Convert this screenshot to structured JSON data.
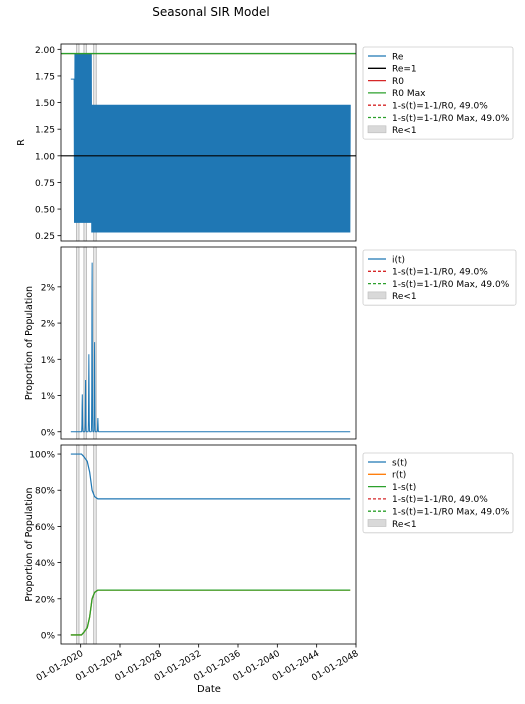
{
  "title": "Seasonal SIR Model",
  "xlabel": "Date",
  "x_ticks": [
    "01-01-2020",
    "01-01-2024",
    "01-01-2028",
    "01-01-2032",
    "01-01-2036",
    "01-01-2040",
    "01-01-2044",
    "01-01-2048"
  ],
  "colors": {
    "blue": "#1f77b4",
    "black": "#000000",
    "red": "#d62728",
    "green": "#2ca02c",
    "orange": "#ff7f0e",
    "band": "#d9d9d9"
  },
  "chart_data": [
    {
      "type": "line",
      "ylabel": "R",
      "x_range": [
        "2018-01-01",
        "2048-01-01"
      ],
      "data_x_range": [
        "2019-01-01",
        "2047-06-01"
      ],
      "ylim": [
        0.2,
        2.05
      ],
      "y_ticks": [
        "0.25",
        "0.50",
        "0.75",
        "1.00",
        "1.25",
        "1.50",
        "1.75",
        "2.00"
      ],
      "y_tick_values": [
        0.25,
        0.5,
        0.75,
        1.0,
        1.25,
        1.5,
        1.75,
        2.0
      ],
      "series": [
        {
          "name": "Re",
          "seasonal_max_start": 1.96,
          "seasonal_min_start": 0.37,
          "seasonal_max_end": 1.48,
          "seasonal_min_end": 0.28
        },
        {
          "name": "Re=1",
          "value": 1.0
        },
        {
          "name": "R0",
          "value": 1.96
        },
        {
          "name": "R0 Max",
          "value": 1.96
        }
      ],
      "legend": [
        "Re",
        "Re=1",
        "R0",
        "R0 Max",
        "1-s(t)=1-1/R0, 49.0%",
        "1-s(t)=1-1/R0 Max, 49.0%",
        "Re<1"
      ],
      "legend_placement": "outside-right"
    },
    {
      "type": "line",
      "ylabel": "Proportion of Population",
      "x_range": [
        "2018-01-01",
        "2048-01-01"
      ],
      "ylim": [
        -0.001,
        0.0255
      ],
      "y_ticks": [
        "0%",
        "1%",
        "1%",
        "2%",
        "2%"
      ],
      "y_tick_values": [
        0.0,
        0.005,
        0.01,
        0.015,
        0.02
      ],
      "series": [
        {
          "name": "i(t)",
          "peaks": [
            [
              "2020-03-01",
              0.0052
            ],
            [
              "2020-07-01",
              0.0072
            ],
            [
              "2020-11-01",
              0.0107
            ],
            [
              "2021-03-01",
              0.024
            ],
            [
              "2021-06-01",
              0.0125
            ],
            [
              "2021-10-01",
              0.0019
            ]
          ]
        }
      ],
      "legend": [
        "i(t)",
        "1-s(t)=1-1/R0, 49.0%",
        "1-s(t)=1-1/R0 Max, 49.0%",
        "Re<1"
      ],
      "legend_placement": "outside-right"
    },
    {
      "type": "line",
      "ylabel": "Proportion of Population",
      "x_range": [
        "2018-01-01",
        "2048-01-01"
      ],
      "ylim": [
        -0.05,
        1.05
      ],
      "y_ticks": [
        "0%",
        "20%",
        "40%",
        "60%",
        "80%",
        "100%"
      ],
      "y_tick_values": [
        0.0,
        0.2,
        0.4,
        0.6,
        0.8,
        1.0
      ],
      "series": [
        {
          "name": "s(t)",
          "points": [
            [
              "2019-01-01",
              1.0
            ],
            [
              "2020-02-01",
              1.0
            ],
            [
              "2020-05-01",
              0.985
            ],
            [
              "2020-09-01",
              0.96
            ],
            [
              "2020-12-01",
              0.9
            ],
            [
              "2021-03-01",
              0.8
            ],
            [
              "2021-06-01",
              0.765
            ],
            [
              "2021-10-01",
              0.752
            ],
            [
              "2047-06-01",
              0.752
            ]
          ]
        },
        {
          "name": "r(t)",
          "points": [
            [
              "2019-01-01",
              0.0
            ],
            [
              "2020-02-01",
              0.0
            ],
            [
              "2020-05-01",
              0.015
            ],
            [
              "2020-09-01",
              0.04
            ],
            [
              "2020-12-01",
              0.1
            ],
            [
              "2021-03-01",
              0.2
            ],
            [
              "2021-06-01",
              0.235
            ],
            [
              "2021-10-01",
              0.248
            ],
            [
              "2047-06-01",
              0.248
            ]
          ]
        },
        {
          "name": "1-s(t)",
          "points": [
            [
              "2019-01-01",
              0.0
            ],
            [
              "2020-02-01",
              0.0
            ],
            [
              "2020-05-01",
              0.015
            ],
            [
              "2020-09-01",
              0.04
            ],
            [
              "2020-12-01",
              0.1
            ],
            [
              "2021-03-01",
              0.2
            ],
            [
              "2021-06-01",
              0.235
            ],
            [
              "2021-10-01",
              0.248
            ],
            [
              "2047-06-01",
              0.248
            ]
          ]
        }
      ],
      "legend": [
        "s(t)",
        "r(t)",
        "1-s(t)",
        "1-s(t)=1-1/R0, 49.0%",
        "1-s(t)=1-1/R0 Max, 49.0%",
        "Re<1"
      ],
      "legend_placement": "outside-right"
    }
  ],
  "re_lt1_bands": [
    [
      "2019-08-01",
      "2019-11-01"
    ],
    [
      "2020-05-01",
      "2020-08-01"
    ],
    [
      "2021-05-01",
      "2021-08-01"
    ]
  ]
}
